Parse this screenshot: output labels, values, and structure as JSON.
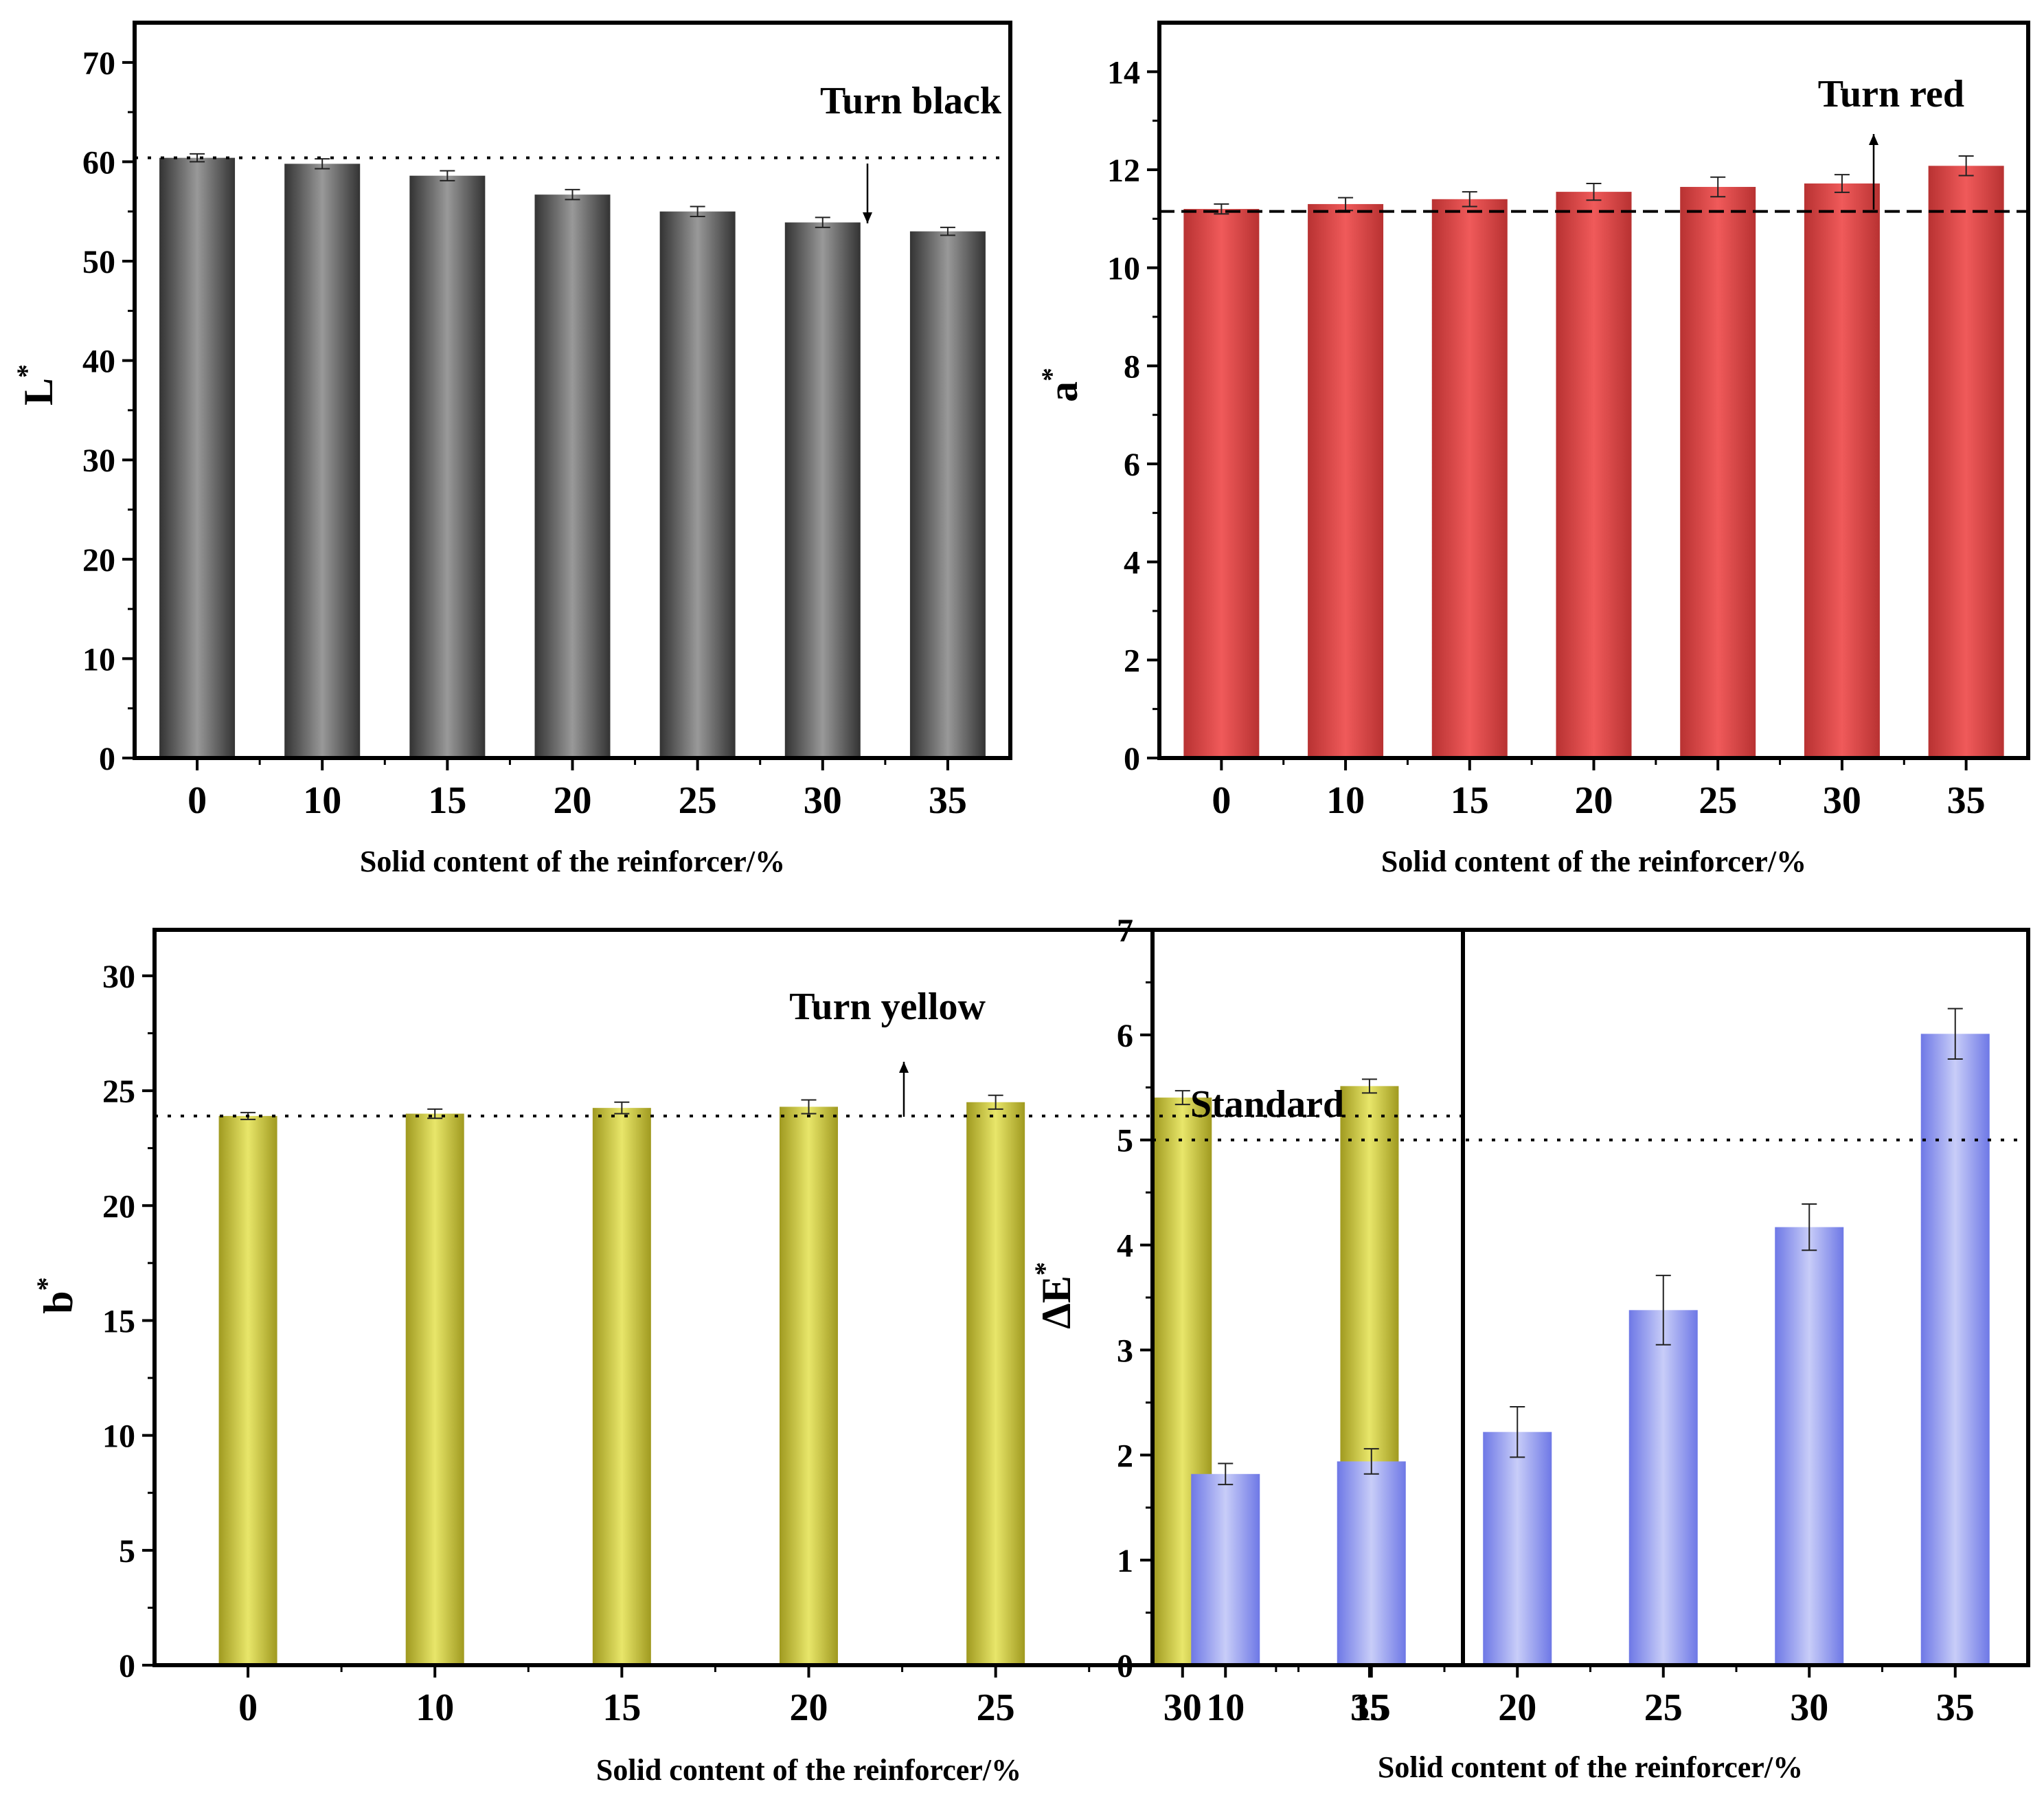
{
  "chart_data": [
    {
      "type": "bar",
      "id": "L",
      "categories": [
        "0",
        "10",
        "15",
        "20",
        "25",
        "30",
        "35"
      ],
      "values": [
        60.4,
        59.8,
        58.6,
        56.7,
        55.0,
        53.9,
        53.0
      ],
      "errors": [
        0.4,
        0.5,
        0.5,
        0.5,
        0.5,
        0.5,
        0.4
      ],
      "xlabel": "Solid content of the reinforcer/%",
      "ylabel": "L",
      "ylabel_sup": "*",
      "ylim": [
        0,
        74
      ],
      "yticks": [
        "0",
        "10",
        "20",
        "30",
        "40",
        "50",
        "60",
        "70"
      ],
      "reference_line": 60.4,
      "annotation": "Turn black",
      "arrow": "down",
      "color": "#999999",
      "edge_color": "#333333"
    },
    {
      "type": "bar",
      "id": "a",
      "categories": [
        "0",
        "10",
        "15",
        "20",
        "25",
        "30",
        "35"
      ],
      "values": [
        11.2,
        11.3,
        11.4,
        11.55,
        11.65,
        11.72,
        12.08
      ],
      "errors": [
        0.1,
        0.13,
        0.15,
        0.17,
        0.2,
        0.18,
        0.2
      ],
      "xlabel": "Solid content of the reinforcer/%",
      "ylabel": "a",
      "ylabel_sup": "*",
      "ylim": [
        0,
        15
      ],
      "yticks": [
        "0",
        "2",
        "4",
        "6",
        "8",
        "10",
        "12",
        "14"
      ],
      "reference_line": 11.15,
      "annotation": "Turn red",
      "arrow": "up",
      "color": "#f05a5a",
      "edge_color": "#b83232"
    },
    {
      "type": "bar",
      "id": "b",
      "categories": [
        "0",
        "10",
        "15",
        "20",
        "25",
        "30",
        "35"
      ],
      "values": [
        23.9,
        24.0,
        24.25,
        24.3,
        24.5,
        24.7,
        25.2
      ],
      "errors": [
        0.15,
        0.2,
        0.25,
        0.3,
        0.3,
        0.3,
        0.3
      ],
      "xlabel": "Solid content of the reinforcer/%",
      "ylabel": "b",
      "ylabel_sup": "*",
      "ylim": [
        0,
        32
      ],
      "yticks": [
        "0",
        "5",
        "10",
        "15",
        "20",
        "25",
        "30"
      ],
      "reference_line": 23.9,
      "annotation": "Turn yellow",
      "arrow": "up",
      "color": "#e8e66a",
      "edge_color": "#a09a20"
    },
    {
      "type": "bar",
      "id": "dE",
      "categories": [
        "10",
        "15",
        "20",
        "25",
        "30",
        "35"
      ],
      "values": [
        1.82,
        1.94,
        2.22,
        3.38,
        4.17,
        6.01
      ],
      "errors": [
        0.1,
        0.12,
        0.24,
        0.33,
        0.22,
        0.24
      ],
      "xlabel": "Solid content of the reinforcer/%",
      "ylabel": "ΔE",
      "ylabel_sup": "*",
      "ylim": [
        0,
        7
      ],
      "yticks": [
        "0",
        "1",
        "2",
        "3",
        "4",
        "5",
        "6",
        "7"
      ],
      "reference_line": 5.0,
      "annotation": "Standard",
      "arrow": "none",
      "color": "#c8cdf8",
      "edge_color": "#6e78e6"
    }
  ]
}
